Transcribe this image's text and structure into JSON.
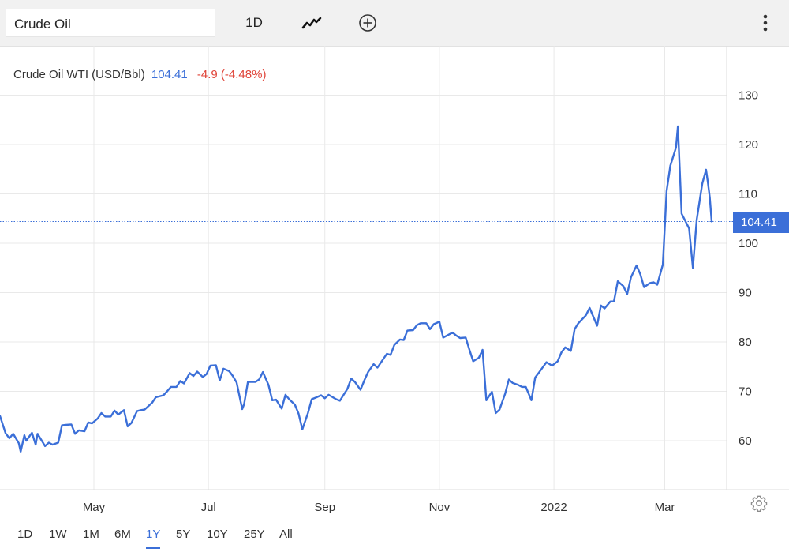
{
  "toolbar": {
    "search_value": "Crude Oil",
    "interval_label": "1D",
    "chart_style_icon": "line-chart-icon",
    "compare_icon": "plus-circle-icon",
    "menu_icon": "kebab-menu-icon"
  },
  "header": {
    "name": "Crude Oil WTI (USD/Bbl)",
    "price": "104.41",
    "change": "-4.9 (-4.48%)"
  },
  "price_tag": "104.41",
  "ranges": [
    "1D",
    "1W",
    "1M",
    "6M",
    "1Y",
    "5Y",
    "10Y",
    "25Y",
    "All"
  ],
  "active_range": "1Y",
  "settings_icon": "gear-icon",
  "colors": {
    "line": "#3b6fd8",
    "negative": "#e0453a",
    "grid": "#e9e9e9"
  },
  "chart_data": {
    "type": "line",
    "title": "Crude Oil WTI (USD/Bbl)",
    "ylim": [
      50,
      140
    ],
    "yticks": [
      60,
      70,
      80,
      90,
      100,
      110,
      120,
      130
    ],
    "grid": true,
    "xticks": [
      {
        "label": "May",
        "date": "2021-05-01"
      },
      {
        "label": "Jul",
        "date": "2021-07-01"
      },
      {
        "label": "Sep",
        "date": "2021-09-01"
      },
      {
        "label": "Nov",
        "date": "2021-11-01"
      },
      {
        "label": "2022",
        "date": "2022-01-01"
      },
      {
        "label": "Mar",
        "date": "2022-03-01"
      }
    ],
    "x_range": [
      "2021-03-12",
      "2022-03-26"
    ],
    "last_value": 104.41,
    "series": [
      {
        "points": [
          [
            "2021-03-12",
            65.0
          ],
          [
            "2021-03-15",
            61.5
          ],
          [
            "2021-03-17",
            60.5
          ],
          [
            "2021-03-19",
            61.4
          ],
          [
            "2021-03-22",
            59.5
          ],
          [
            "2021-03-23",
            57.8
          ],
          [
            "2021-03-25",
            61.1
          ],
          [
            "2021-03-26",
            60.0
          ],
          [
            "2021-03-29",
            61.6
          ],
          [
            "2021-03-31",
            59.2
          ],
          [
            "2021-04-01",
            61.4
          ],
          [
            "2021-04-05",
            58.9
          ],
          [
            "2021-04-07",
            59.6
          ],
          [
            "2021-04-09",
            59.2
          ],
          [
            "2021-04-12",
            59.6
          ],
          [
            "2021-04-14",
            63.1
          ],
          [
            "2021-04-16",
            63.2
          ],
          [
            "2021-04-19",
            63.3
          ],
          [
            "2021-04-21",
            61.4
          ],
          [
            "2021-04-23",
            62.1
          ],
          [
            "2021-04-26",
            61.9
          ],
          [
            "2021-04-28",
            63.7
          ],
          [
            "2021-04-30",
            63.5
          ],
          [
            "2021-05-03",
            64.5
          ],
          [
            "2021-05-05",
            65.6
          ],
          [
            "2021-05-07",
            64.9
          ],
          [
            "2021-05-10",
            64.9
          ],
          [
            "2021-05-12",
            66.1
          ],
          [
            "2021-05-14",
            65.3
          ],
          [
            "2021-05-17",
            66.2
          ],
          [
            "2021-05-19",
            62.9
          ],
          [
            "2021-05-21",
            63.6
          ],
          [
            "2021-05-24",
            66.0
          ],
          [
            "2021-05-26",
            66.2
          ],
          [
            "2021-05-28",
            66.3
          ],
          [
            "2021-06-01",
            67.7
          ],
          [
            "2021-06-03",
            68.8
          ],
          [
            "2021-06-07",
            69.2
          ],
          [
            "2021-06-09",
            70.0
          ],
          [
            "2021-06-11",
            70.9
          ],
          [
            "2021-06-14",
            70.9
          ],
          [
            "2021-06-16",
            72.1
          ],
          [
            "2021-06-18",
            71.6
          ],
          [
            "2021-06-21",
            73.7
          ],
          [
            "2021-06-23",
            73.1
          ],
          [
            "2021-06-25",
            74.0
          ],
          [
            "2021-06-28",
            72.9
          ],
          [
            "2021-06-30",
            73.5
          ],
          [
            "2021-07-02",
            75.2
          ],
          [
            "2021-07-05",
            75.3
          ],
          [
            "2021-07-07",
            72.2
          ],
          [
            "2021-07-09",
            74.6
          ],
          [
            "2021-07-12",
            74.1
          ],
          [
            "2021-07-14",
            73.1
          ],
          [
            "2021-07-16",
            71.8
          ],
          [
            "2021-07-19",
            66.4
          ],
          [
            "2021-07-20",
            67.4
          ],
          [
            "2021-07-22",
            71.9
          ],
          [
            "2021-07-26",
            71.9
          ],
          [
            "2021-07-28",
            72.4
          ],
          [
            "2021-07-30",
            73.9
          ],
          [
            "2021-08-02",
            71.3
          ],
          [
            "2021-08-04",
            68.2
          ],
          [
            "2021-08-06",
            68.3
          ],
          [
            "2021-08-09",
            66.5
          ],
          [
            "2021-08-11",
            69.3
          ],
          [
            "2021-08-13",
            68.4
          ],
          [
            "2021-08-16",
            67.3
          ],
          [
            "2021-08-18",
            65.5
          ],
          [
            "2021-08-20",
            62.3
          ],
          [
            "2021-08-23",
            65.6
          ],
          [
            "2021-08-25",
            68.4
          ],
          [
            "2021-08-27",
            68.7
          ],
          [
            "2021-08-30",
            69.2
          ],
          [
            "2021-09-01",
            68.6
          ],
          [
            "2021-09-03",
            69.3
          ],
          [
            "2021-09-07",
            68.4
          ],
          [
            "2021-09-09",
            68.1
          ],
          [
            "2021-09-13",
            70.5
          ],
          [
            "2021-09-15",
            72.6
          ],
          [
            "2021-09-17",
            71.9
          ],
          [
            "2021-09-20",
            70.3
          ],
          [
            "2021-09-22",
            72.2
          ],
          [
            "2021-09-24",
            73.9
          ],
          [
            "2021-09-27",
            75.5
          ],
          [
            "2021-09-29",
            74.8
          ],
          [
            "2021-10-01",
            75.9
          ],
          [
            "2021-10-04",
            77.6
          ],
          [
            "2021-10-06",
            77.4
          ],
          [
            "2021-10-08",
            79.4
          ],
          [
            "2021-10-11",
            80.5
          ],
          [
            "2021-10-13",
            80.4
          ],
          [
            "2021-10-15",
            82.3
          ],
          [
            "2021-10-18",
            82.4
          ],
          [
            "2021-10-20",
            83.4
          ],
          [
            "2021-10-22",
            83.8
          ],
          [
            "2021-10-25",
            83.8
          ],
          [
            "2021-10-27",
            82.6
          ],
          [
            "2021-10-29",
            83.6
          ],
          [
            "2021-11-01",
            84.1
          ],
          [
            "2021-11-03",
            80.9
          ],
          [
            "2021-11-05",
            81.3
          ],
          [
            "2021-11-08",
            81.9
          ],
          [
            "2021-11-10",
            81.3
          ],
          [
            "2021-11-12",
            80.8
          ],
          [
            "2021-11-15",
            80.9
          ],
          [
            "2021-11-17",
            78.4
          ],
          [
            "2021-11-19",
            76.1
          ],
          [
            "2021-11-22",
            76.8
          ],
          [
            "2021-11-24",
            78.4
          ],
          [
            "2021-11-26",
            68.2
          ],
          [
            "2021-11-29",
            69.9
          ],
          [
            "2021-12-01",
            65.6
          ],
          [
            "2021-12-03",
            66.3
          ],
          [
            "2021-12-06",
            69.5
          ],
          [
            "2021-12-08",
            72.4
          ],
          [
            "2021-12-10",
            71.7
          ],
          [
            "2021-12-13",
            71.3
          ],
          [
            "2021-12-15",
            70.9
          ],
          [
            "2021-12-17",
            70.9
          ],
          [
            "2021-12-20",
            68.2
          ],
          [
            "2021-12-22",
            72.8
          ],
          [
            "2021-12-24",
            73.8
          ],
          [
            "2021-12-28",
            75.9
          ],
          [
            "2021-12-31",
            75.2
          ],
          [
            "2022-01-03",
            76.1
          ],
          [
            "2022-01-05",
            77.9
          ],
          [
            "2022-01-07",
            78.9
          ],
          [
            "2022-01-10",
            78.2
          ],
          [
            "2022-01-12",
            82.6
          ],
          [
            "2022-01-14",
            83.8
          ],
          [
            "2022-01-18",
            85.4
          ],
          [
            "2022-01-20",
            86.9
          ],
          [
            "2022-01-24",
            83.3
          ],
          [
            "2022-01-26",
            87.4
          ],
          [
            "2022-01-28",
            86.8
          ],
          [
            "2022-01-31",
            88.2
          ],
          [
            "2022-02-02",
            88.3
          ],
          [
            "2022-02-04",
            92.3
          ],
          [
            "2022-02-07",
            91.3
          ],
          [
            "2022-02-09",
            89.7
          ],
          [
            "2022-02-11",
            93.1
          ],
          [
            "2022-02-14",
            95.5
          ],
          [
            "2022-02-16",
            93.7
          ],
          [
            "2022-02-18",
            91.1
          ],
          [
            "2022-02-21",
            91.9
          ],
          [
            "2022-02-23",
            92.1
          ],
          [
            "2022-02-25",
            91.6
          ],
          [
            "2022-02-28",
            95.7
          ],
          [
            "2022-03-02",
            110.6
          ],
          [
            "2022-03-04",
            115.7
          ],
          [
            "2022-03-07",
            119.4
          ],
          [
            "2022-03-08",
            123.7
          ],
          [
            "2022-03-10",
            106.0
          ],
          [
            "2022-03-14",
            103.0
          ],
          [
            "2022-03-16",
            95.0
          ],
          [
            "2022-03-18",
            104.7
          ],
          [
            "2022-03-21",
            112.1
          ],
          [
            "2022-03-23",
            114.9
          ],
          [
            "2022-03-24",
            112.3
          ],
          [
            "2022-03-25",
            109.3
          ],
          [
            "2022-03-26",
            104.41
          ]
        ]
      }
    ]
  }
}
